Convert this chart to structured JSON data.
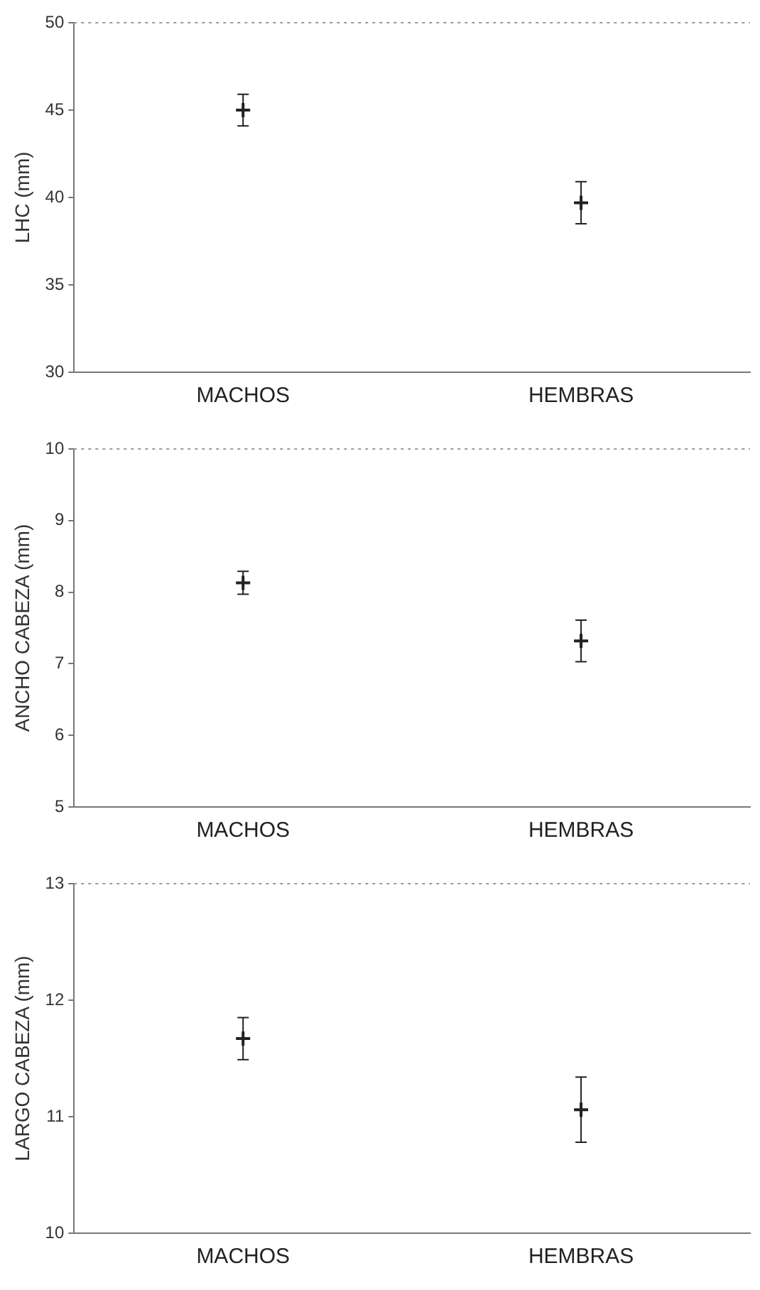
{
  "chart_data": [
    {
      "type": "scatter",
      "ylabel": "LHC (mm)",
      "categories": [
        "MACHOS",
        "HEMBRAS"
      ],
      "values": [
        45.0,
        39.7
      ],
      "errors": [
        0.9,
        1.2
      ],
      "color": "#222222",
      "marker": "cross",
      "ylim": [
        30,
        50
      ],
      "yticks": [
        30,
        35,
        40,
        45,
        50
      ],
      "grid": false,
      "legend": false
    },
    {
      "type": "scatter",
      "ylabel": "ANCHO CABEZA (mm)",
      "categories": [
        "MACHOS",
        "HEMBRAS"
      ],
      "values": [
        8.13,
        7.32
      ],
      "errors": [
        0.16,
        0.29
      ],
      "color": "#222222",
      "marker": "cross",
      "ylim": [
        5,
        10
      ],
      "yticks": [
        5,
        6,
        7,
        8,
        9,
        10
      ],
      "grid": false,
      "legend": false
    },
    {
      "type": "scatter",
      "ylabel": "LARGO CABEZA (mm)",
      "categories": [
        "MACHOS",
        "HEMBRAS"
      ],
      "values": [
        11.67,
        11.06
      ],
      "errors": [
        0.18,
        0.28
      ],
      "color": "#222222",
      "marker": "cross",
      "ylim": [
        10,
        13
      ],
      "yticks": [
        10,
        11,
        12,
        13
      ],
      "grid": false,
      "legend": false
    }
  ]
}
